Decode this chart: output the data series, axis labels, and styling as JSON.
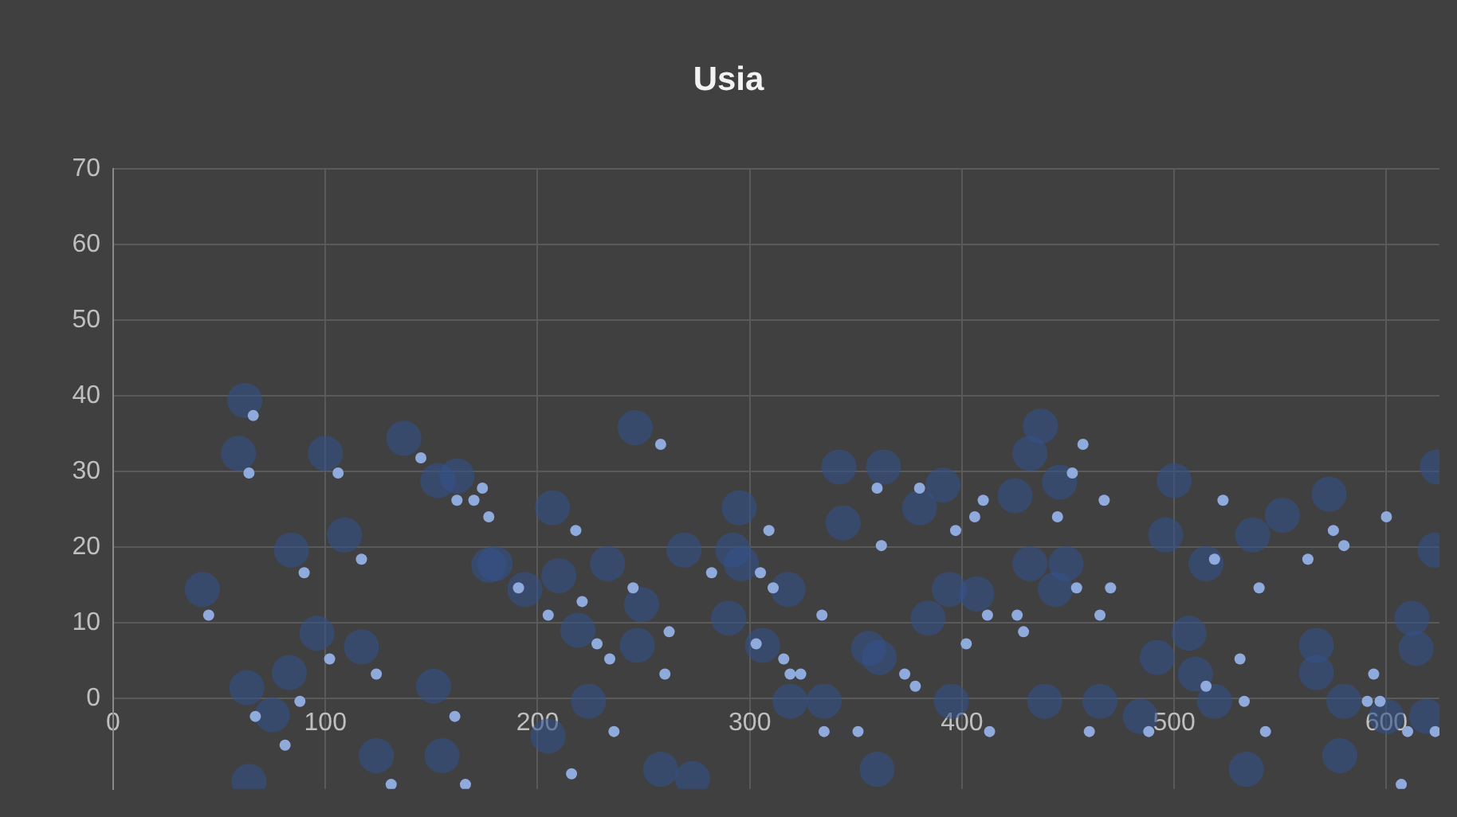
{
  "chart_data": {
    "type": "scatter",
    "title": "Usia",
    "xlim": [
      0,
      625
    ],
    "xticks": [
      0,
      100,
      200,
      300,
      400,
      500,
      600
    ],
    "ylim": [
      -12,
      70
    ],
    "yticks": [
      0,
      10,
      20,
      30,
      40,
      50,
      60,
      70
    ],
    "grid": true,
    "marker": "circle",
    "series": [
      {
        "color": "#34518a",
        "x": [
          62,
          59,
          100,
          137,
          162,
          153,
          109,
          84,
          42,
          96,
          117,
          83,
          63,
          75,
          151,
          155,
          124,
          64,
          177,
          246,
          207,
          180,
          194,
          210,
          233,
          219,
          249,
          247,
          224,
          269,
          295,
          292,
          296,
          290,
          306,
          318,
          319,
          335,
          342,
          344,
          258,
          273,
          205,
          363,
          391,
          380,
          437,
          432,
          446,
          425,
          500,
          496,
          515,
          537,
          551,
          573,
          394,
          407,
          432,
          449,
          444,
          384,
          356,
          361,
          492,
          507,
          510,
          567,
          567,
          395,
          439,
          465,
          484,
          519,
          580,
          600,
          612,
          614,
          619,
          623,
          624,
          360,
          534,
          578
        ],
        "values": [
          39.4,
          32.4,
          32.4,
          34.4,
          29.4,
          28.8,
          21.6,
          19.6,
          14.4,
          8.6,
          6.8,
          3.4,
          1.4,
          -2.2,
          1.6,
          -7.6,
          -7.6,
          -11,
          17.6,
          35.8,
          25.2,
          17.8,
          14.4,
          16.2,
          17.8,
          9,
          12.4,
          7,
          -0.4,
          19.6,
          25.2,
          19.6,
          17.8,
          10.6,
          7,
          14.4,
          -0.4,
          -0.4,
          30.6,
          23.2,
          -9.4,
          -10.6,
          -5,
          30.6,
          28.2,
          25.2,
          36,
          32.4,
          28.6,
          26.8,
          28.8,
          21.6,
          17.8,
          21.6,
          24.2,
          27,
          14.4,
          13.8,
          17.8,
          17.8,
          14.4,
          10.6,
          6.6,
          5.4,
          5.4,
          8.6,
          3.2,
          7,
          3.4,
          -0.4,
          -0.4,
          -0.4,
          -2.4,
          -0.4,
          -0.4,
          -2.4,
          10.6,
          6.6,
          -2.4,
          19.6,
          30.6,
          -9.4,
          -9.4,
          -7.6
        ]
      },
      {
        "color": "#8faadc",
        "x": [
          66,
          64,
          106,
          145,
          162,
          170,
          174,
          177,
          90,
          117,
          45,
          102,
          124,
          88,
          67,
          161,
          81,
          131,
          166,
          258,
          218,
          309,
          191,
          221,
          245,
          282,
          305,
          311,
          334,
          205,
          262,
          228,
          234,
          303,
          316,
          319,
          324,
          260,
          236,
          335,
          351,
          216,
          457,
          360,
          380,
          452,
          410,
          406,
          445,
          467,
          523,
          397,
          362,
          600,
          575,
          580,
          563,
          519,
          454,
          470,
          540,
          412,
          426,
          465,
          429,
          402,
          531,
          373,
          378,
          515,
          594,
          533,
          591,
          597,
          413,
          460,
          488,
          543,
          610,
          623,
          607
        ],
        "values": [
          37.4,
          29.8,
          29.8,
          31.8,
          26.2,
          26.2,
          27.8,
          24,
          16.6,
          18.4,
          11,
          5.2,
          3.2,
          -0.4,
          -2.4,
          -2.4,
          -6.2,
          -11.4,
          -11.4,
          33.6,
          22.2,
          22.2,
          14.6,
          12.8,
          14.6,
          16.6,
          16.6,
          14.6,
          11,
          11,
          8.8,
          7.2,
          5.2,
          7.2,
          5.2,
          3.2,
          3.2,
          3.2,
          -4.4,
          -4.4,
          -4.4,
          -10,
          33.6,
          27.8,
          27.8,
          29.8,
          26.2,
          24,
          24,
          26.2,
          26.2,
          22.2,
          20.2,
          24,
          22.2,
          20.2,
          18.4,
          18.4,
          14.6,
          14.6,
          14.6,
          11,
          11,
          11,
          8.8,
          7.2,
          5.2,
          3.2,
          1.6,
          1.6,
          3.2,
          -0.4,
          -0.4,
          -0.4,
          -4.4,
          -4.4,
          -4.4,
          -4.4,
          -4.4,
          -4.4,
          -11.4
        ]
      }
    ]
  }
}
